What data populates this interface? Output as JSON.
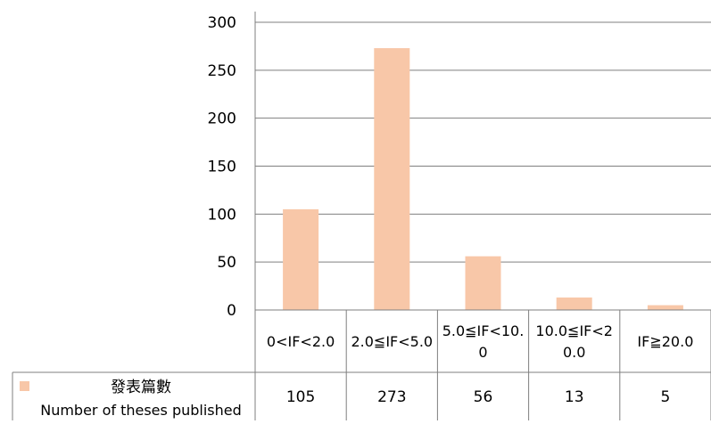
{
  "chart_data": {
    "type": "bar",
    "categories": [
      [
        "0<IF<2.0"
      ],
      [
        "2.0≦IF<5.0"
      ],
      [
        "5.0≦IF<10.",
        "0"
      ],
      [
        "10.0≦IF<2",
        "0.0"
      ],
      [
        "IF≧20.0"
      ]
    ],
    "series": [
      {
        "name_zh": "發表篇數",
        "name_en": "Number of theses published",
        "values": [
          105,
          273,
          56,
          13,
          5
        ],
        "color": "#f8c7a8"
      }
    ],
    "ylim": [
      0,
      300
    ],
    "yticks": [
      "300",
      "250",
      "200",
      "150",
      "100",
      "50",
      "0"
    ],
    "grid": true,
    "legend": "data-table"
  }
}
